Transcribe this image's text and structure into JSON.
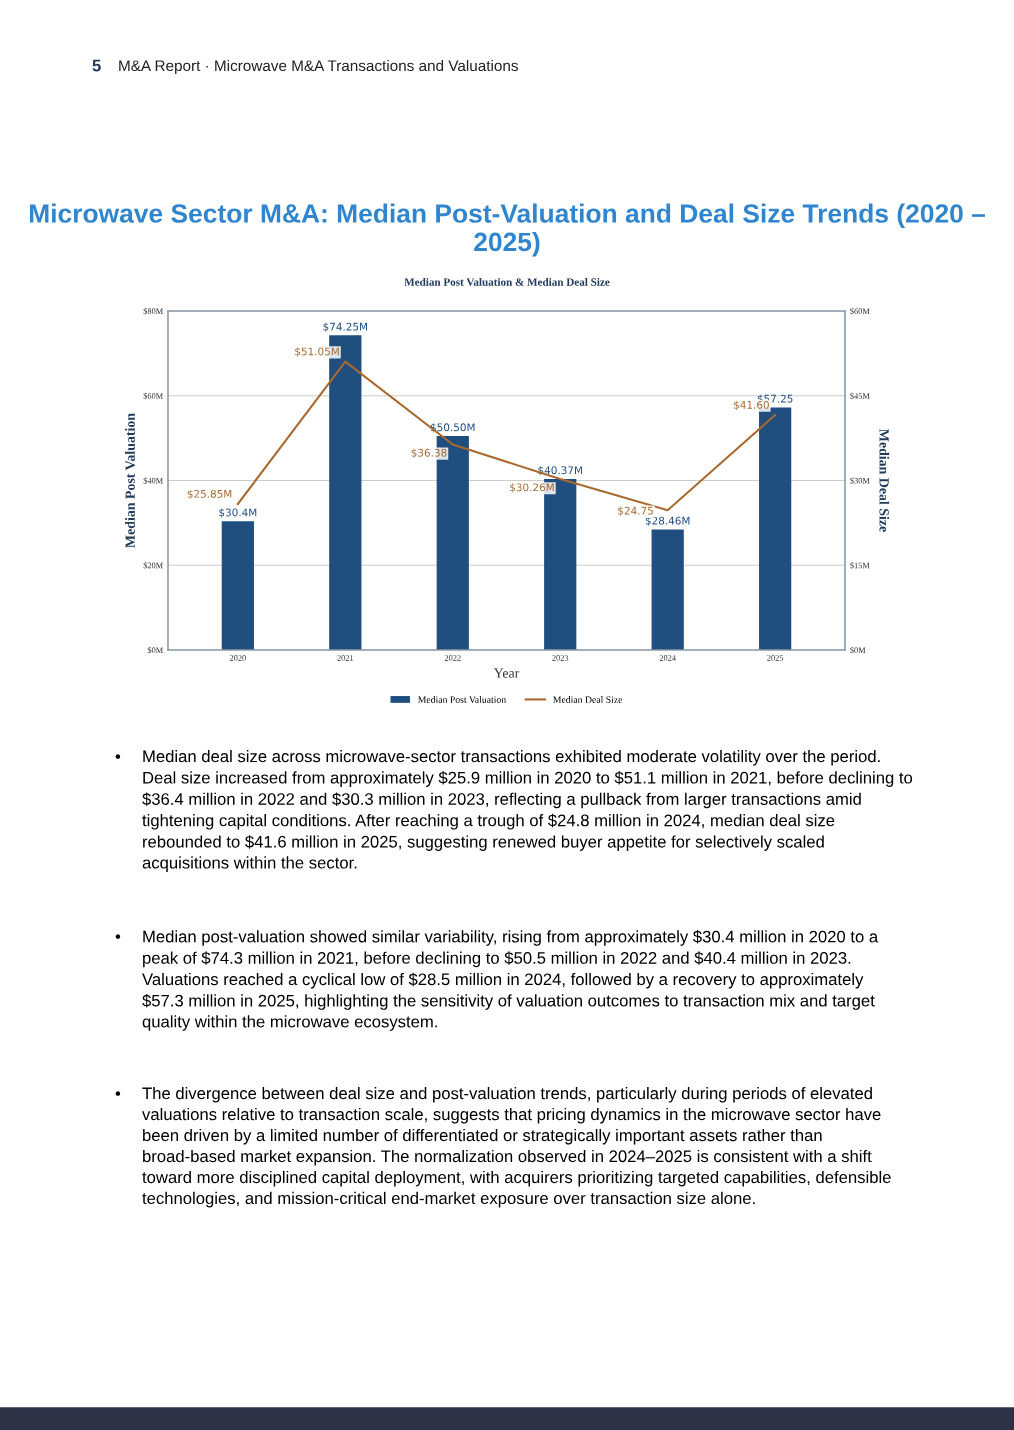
{
  "chart_data": {
    "type": "bar",
    "title": "Microwave Sector M&A: Median Post-Valuation and Deal Size Trends (2020 – 2025)",
    "subtitle": "Median Post Valuation & Median Deal Size",
    "xlabel": "Year",
    "ylabel": "Median Post Valuation",
    "y2label": "Median Deal Size",
    "categories": [
      "2020",
      "2021",
      "2022",
      "2023",
      "2024",
      "2025"
    ],
    "series": [
      {
        "name": "Median Post Valuation",
        "color": "#1f4e7f",
        "values": [
          30.4,
          74.25,
          50.5,
          40.37,
          28.46,
          57.25
        ],
        "value_labels": [
          "$30.4M",
          "$74.25M",
          "$50.50M",
          "$40.37M",
          "$28.46M",
          "$57.25"
        ]
      },
      {
        "name": "Median Deal Size",
        "type": "line",
        "axis": "y2",
        "color": "#a8692e",
        "values": [
          25.85,
          51.05,
          36.38,
          30.26,
          24.75,
          41.6
        ],
        "value_labels": [
          "$25.85M",
          "$51.05M",
          "$36.38",
          "$30.26M",
          "$24.75",
          "$41.60"
        ]
      }
    ],
    "ylim": [
      0,
      80
    ],
    "yticks": [
      {
        "value": 0,
        "label": "$0M"
      },
      {
        "value": 20,
        "label": "$20M"
      },
      {
        "value": 40,
        "label": "$40M"
      },
      {
        "value": 60,
        "label": "$60M"
      },
      {
        "value": 80,
        "label": "$80M"
      }
    ],
    "y2lim": [
      0,
      60
    ],
    "y2ticks": [
      {
        "value": 0,
        "label": "$0M"
      },
      {
        "value": 15,
        "label": "$15M"
      },
      {
        "value": 30,
        "label": "$30M"
      },
      {
        "value": 45,
        "label": "$45M"
      },
      {
        "value": 60,
        "label": "$60M"
      }
    ],
    "grid": "y",
    "legend": "bottom",
    "marker": "none",
    "line_style": "solid",
    "annotations": [
      "5",
      "M&A Report · Microwave M&A Transactions and Valuations",
      "•",
      "Median deal size across microwave-sector transactions exhibited moderate volatility over the period. Deal size increased from approximately $25.9 million in 2020 to $51.1 million in 2021, before declining to $36.4 million in 2022 and $30.3 million in 2023, reflecting a pullback from larger transactions amid tightening capital conditions. After reaching a trough of $24.8 million in 2024, median deal size rebounded to $41.6 million in 2025, suggesting renewed buyer appetite for selectively scaled acquisitions within the sector.",
      "•",
      "Median post-valuation showed similar variability, rising from approximately $30.4 million in 2020 to a peak of $74.3 million in 2021, before declining to $50.5 million in 2022 and $40.4 million in 2023. Valuations reached a cyclical low of $28.5 million in 2024, followed by a recovery to approximately $57.3 million in 2025, highlighting the sensitivity of valuation outcomes to transaction mix and target quality within the microwave ecosystem.",
      "•",
      "The divergence between deal size and post-valuation trends, particularly during periods of elevated valuations relative to transaction scale, suggests that pricing dynamics in the microwave sector have been driven by a limited number of differentiated or strategically important assets rather than broad-based market expansion. The normalization observed in 2024–2025 is consistent with a shift toward more disciplined capital deployment, with acquirers prioritizing targeted capabilities, defensible technologies, and mission-critical end-market exposure over transaction size alone."
    ]
  }
}
